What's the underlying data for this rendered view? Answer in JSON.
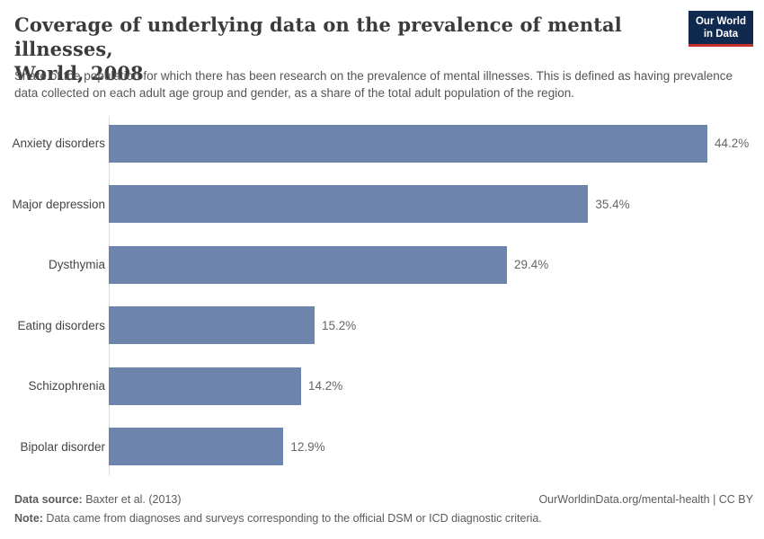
{
  "header": {
    "title_line1": "Coverage of underlying data on the prevalence of mental illnesses,",
    "title_line2": "World, 2008",
    "subtitle": "Share of the population for which there has been research on the prevalence of mental illnesses. This is defined as having prevalence data collected on each adult age group and gender, as a share of the total adult population of the region.",
    "logo": {
      "line1": "Our World",
      "line2": "in Data",
      "bg_color": "#0f2a4e",
      "accent_color": "#c7302d"
    }
  },
  "chart_data": {
    "type": "bar",
    "orientation": "horizontal",
    "title": "Coverage of underlying data on the prevalence of mental illnesses, World, 2008",
    "categories": [
      "Anxiety disorders",
      "Major depression",
      "Dysthymia",
      "Eating disorders",
      "Schizophrenia",
      "Bipolar disorder"
    ],
    "values": [
      44.2,
      35.4,
      29.4,
      15.2,
      14.2,
      12.9
    ],
    "value_labels": [
      "44.2%",
      "35.4%",
      "29.4%",
      "15.2%",
      "14.2%",
      "12.9%"
    ],
    "unit": "%",
    "xlim": [
      0,
      47.6
    ],
    "bar_color": "#6d85ac",
    "axis_color": "#dddddd",
    "grid": false,
    "legend": null
  },
  "footer": {
    "source_label": "Data source:",
    "source_text": " Baxter et al. (2013)",
    "link_text": "OurWorldinData.org/mental-health | CC BY",
    "note_label": "Note:",
    "note_text": " Data came from diagnoses and surveys corresponding to the official DSM or ICD diagnostic criteria."
  }
}
